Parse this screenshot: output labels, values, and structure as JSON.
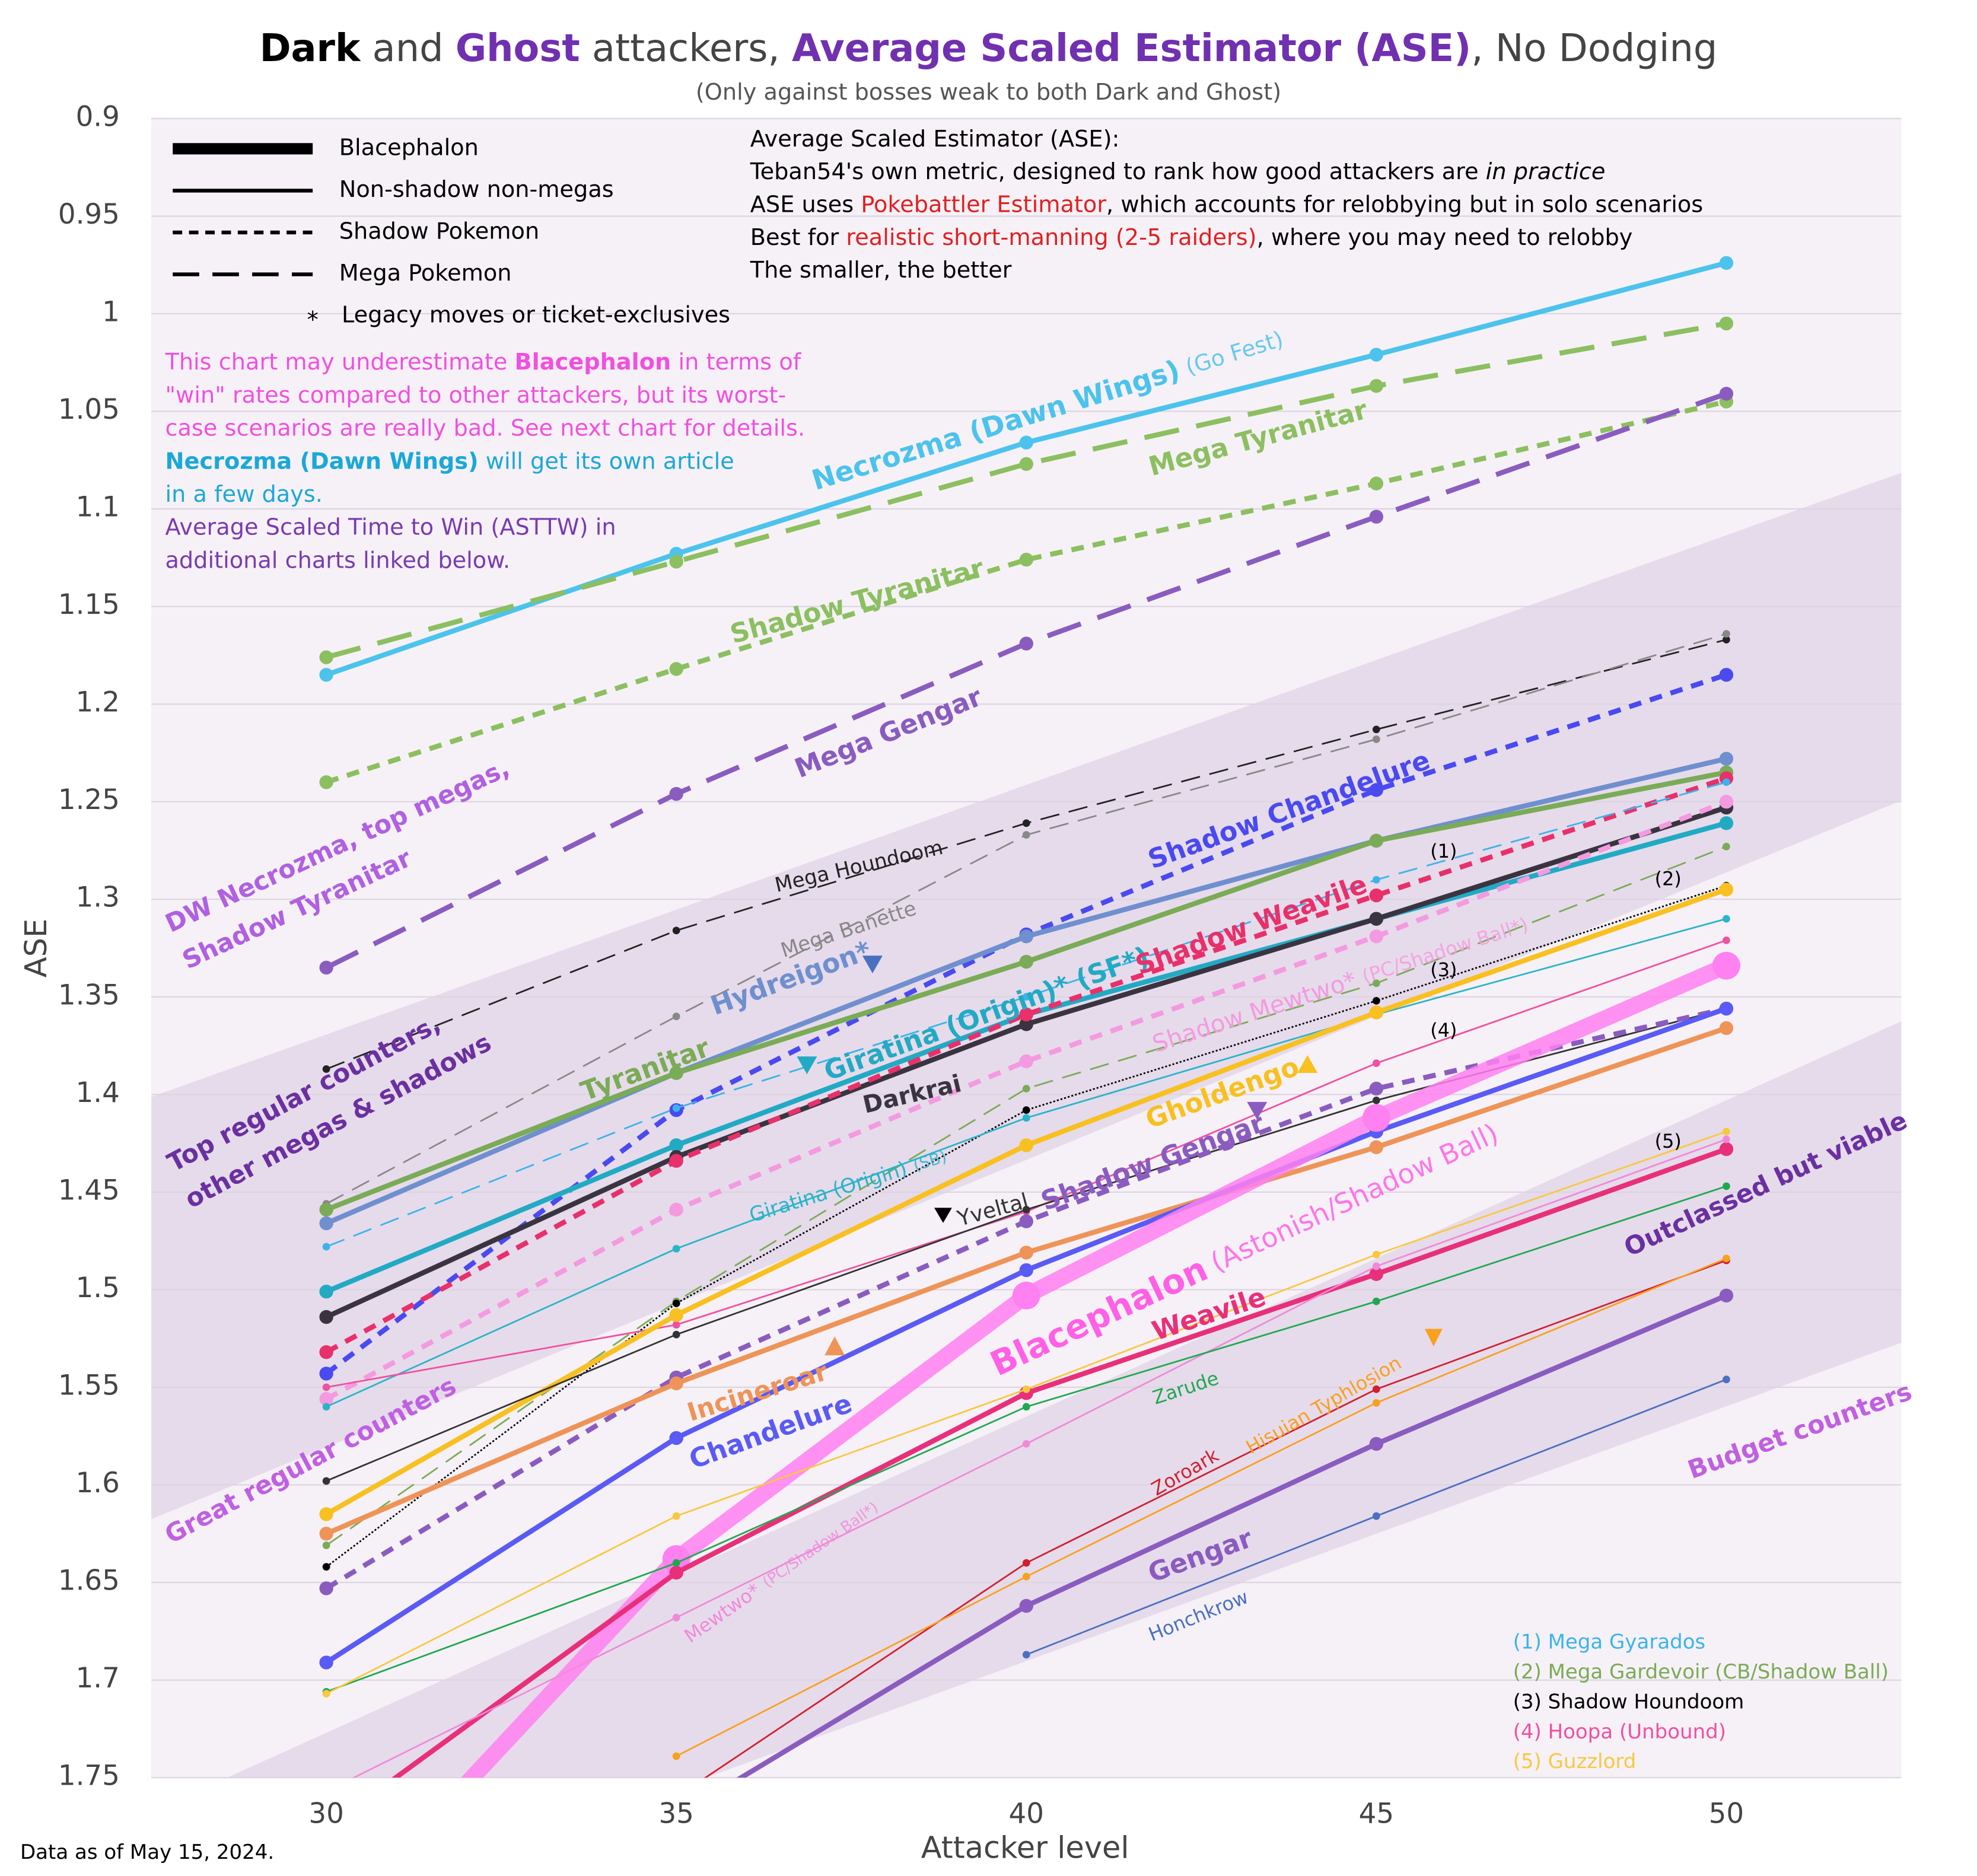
{
  "chart_data": {
    "type": "line",
    "title": [
      {
        "text": "Dark",
        "color": "#000000",
        "bold": true
      },
      {
        "text": " and ",
        "color": "#444444"
      },
      {
        "text": "Ghost",
        "color": "#7030b0",
        "bold": true
      },
      {
        "text": " attackers, ",
        "color": "#444444"
      },
      {
        "text": "Average Scaled Estimator (ASE)",
        "color": "#7030b0",
        "bold": true
      },
      {
        "text": ", No Dodging",
        "color": "#444444"
      }
    ],
    "subtitle": "(Only against bosses weak to both Dark and Ghost)",
    "x_label": "Attacker level",
    "y_label": "ASE",
    "x": [
      30,
      35,
      40,
      45,
      50
    ],
    "xlim": [
      27.5,
      52.5
    ],
    "xticks": [
      30,
      35,
      40,
      45,
      50
    ],
    "ylim": [
      0.9,
      1.75
    ],
    "y_inverted": true,
    "yticks": [
      0.9,
      0.95,
      1,
      1.05,
      1.1,
      1.15,
      1.2,
      1.25,
      1.3,
      1.35,
      1.4,
      1.45,
      1.5,
      1.55,
      1.6,
      1.65,
      1.7,
      1.75
    ],
    "grid": true,
    "legend_styles": [
      {
        "label": "Blacephalon",
        "line": "thick"
      },
      {
        "label": "Non-shadow non-megas",
        "line": "solid"
      },
      {
        "label": "Shadow Pokemon",
        "line": "short-dash"
      },
      {
        "label": "Mega Pokemon",
        "line": "long-dash"
      },
      {
        "label": "Legacy moves or ticket-exclusives",
        "symbol": "*"
      }
    ],
    "notes": [
      [
        {
          "text": "Average Scaled Estimator (ASE):"
        }
      ],
      [
        {
          "text": "Teban54's own metric, designed to rank how good attackers are "
        },
        {
          "text": "in practice",
          "italic": true
        }
      ],
      [
        {
          "text": "ASE uses "
        },
        {
          "text": "Pokebattler Estimator",
          "color": "#e02020"
        },
        {
          "text": ", which accounts for relobbying but in solo scenarios"
        }
      ],
      [
        {
          "text": "Best for "
        },
        {
          "text": "realistic short-manning (2-5 raiders)",
          "color": "#e02020"
        },
        {
          "text": ", where you may need to relobby"
        }
      ],
      [
        {
          "text": "The smaller, the better"
        }
      ]
    ],
    "caveats": [
      [
        {
          "text": "This chart may underestimate ",
          "color": "#f050e0"
        },
        {
          "text": "Blacephalon",
          "color": "#f050e0",
          "bold": true
        },
        {
          "text": " in terms of",
          "color": "#f050e0"
        }
      ],
      [
        {
          "text": "\"win\" rates compared to other attackers, but its worst-",
          "color": "#f050e0"
        }
      ],
      [
        {
          "text": "case scenarios are really bad. See next chart for details.",
          "color": "#f050e0"
        }
      ],
      [
        {
          "text": "Necrozma (Dawn Wings)",
          "color": "#1aa8d8",
          "bold": true
        },
        {
          "text": " will get its own article",
          "color": "#1aa8d8"
        }
      ],
      [
        {
          "text": "in a few days.",
          "color": "#1aa8d8"
        }
      ],
      [
        {
          "text": "Average Scaled Time to Win (ASTTW) in",
          "color": "#7a3ab0"
        }
      ],
      [
        {
          "text": "additional charts linked below.",
          "color": "#7a3ab0"
        }
      ]
    ],
    "annotations": [
      {
        "lines": [
          "DW Necrozma, top megas,",
          "Shadow Tyranitar"
        ],
        "color": "#b060e0"
      },
      {
        "lines": [
          "Top regular counters,",
          "other megas & shadows"
        ],
        "color": "#6a30a0"
      },
      {
        "lines": [
          "Great regular counters"
        ],
        "color": "#c060e0"
      },
      {
        "lines": [
          "Outclassed but viable"
        ],
        "color": "#6a30a0"
      },
      {
        "lines": [
          "Budget counters"
        ],
        "color": "#c060e0"
      }
    ],
    "footer": "Data as of May 15, 2024.",
    "series": [
      {
        "name": "Necrozma (Dawn Wings)",
        "tag": "(Go Fest)",
        "color": "#4cc3ec",
        "line": "solid",
        "weight": "bold",
        "values": [
          1.185,
          1.123,
          1.066,
          1.021,
          0.974
        ]
      },
      {
        "name": "Mega Tyranitar",
        "color": "#8cbf60",
        "line": "long-dash",
        "weight": "bold",
        "values": [
          1.176,
          1.127,
          1.077,
          1.037,
          1.005
        ]
      },
      {
        "name": "Shadow Tyranitar",
        "color": "#8cbf60",
        "line": "short-dash",
        "weight": "bold",
        "values": [
          1.24,
          1.182,
          1.126,
          1.087,
          1.045
        ]
      },
      {
        "name": "Mega Gengar",
        "color": "#8a5cbf",
        "line": "long-dash",
        "weight": "bold",
        "values": [
          1.335,
          1.246,
          1.169,
          1.104,
          1.041
        ]
      },
      {
        "name": "Mega Houndoom",
        "color": "#222222",
        "line": "long-dash",
        "weight": "thin",
        "values": [
          1.387,
          1.316,
          1.261,
          1.213,
          1.167
        ]
      },
      {
        "name": "Mega Banette",
        "color": "#888888",
        "line": "long-dash",
        "weight": "thin",
        "values": [
          1.456,
          1.36,
          1.267,
          1.218,
          1.164
        ]
      },
      {
        "name": "Shadow Chandelure",
        "color": "#4a4af0",
        "line": "short-dash",
        "weight": "bold",
        "values": [
          1.543,
          1.408,
          1.318,
          1.244,
          1.185
        ]
      },
      {
        "name": "Hydreigon*",
        "color": "#6f8fcf",
        "line": "solid",
        "weight": "bold",
        "values": [
          1.466,
          1.389,
          1.319,
          1.27,
          1.228
        ]
      },
      {
        "name": "Tyranitar",
        "color": "#7aab56",
        "line": "solid",
        "weight": "bold",
        "values": [
          1.459,
          1.389,
          1.332,
          1.27,
          1.235
        ]
      },
      {
        "name": "Giratina (Origin)* (SF*)",
        "color": "#22aac4",
        "line": "solid",
        "weight": "bold",
        "values": [
          1.501,
          1.426,
          1.359,
          1.31,
          1.261
        ]
      },
      {
        "name": "Darkrai",
        "color": "#3a3440",
        "line": "solid",
        "weight": "bold",
        "values": [
          1.514,
          1.432,
          1.364,
          1.31,
          1.253
        ]
      },
      {
        "name": "Shadow Weavile",
        "color": "#e8306a",
        "line": "short-dash",
        "weight": "bold",
        "values": [
          1.532,
          1.434,
          1.359,
          1.298,
          1.238
        ]
      },
      {
        "name": "Shadow Mewtwo*",
        "tag": "(PC/Shadow Ball*)",
        "color": "#f49ae0",
        "line": "short-dash",
        "weight": "bold",
        "values": [
          1.556,
          1.459,
          1.383,
          1.319,
          1.25
        ]
      },
      {
        "name": "Mega Gyarados",
        "marker": "(1)",
        "color": "#3ab4ea",
        "line": "long-dash",
        "weight": "thin",
        "values": [
          1.478,
          1.407,
          1.35,
          1.29,
          1.24
        ]
      },
      {
        "name": "Mega Gardevoir",
        "tag": "(CB/Shadow Ball)",
        "marker": "(2)",
        "color": "#7aab56",
        "line": "long-dash",
        "weight": "thin",
        "values": [
          1.631,
          1.506,
          1.397,
          1.343,
          1.273
        ]
      },
      {
        "name": "Shadow Houndoom",
        "marker": "(3)",
        "color": "#000000",
        "line": "dot",
        "weight": "thin",
        "values": [
          1.642,
          1.507,
          1.408,
          1.352,
          1.293
        ]
      },
      {
        "name": "Giratina (Origin)",
        "tag": "(SB)",
        "color": "#2ab4c8",
        "line": "solid",
        "weight": "thin",
        "values": [
          1.56,
          1.479,
          1.412,
          1.359,
          1.31
        ]
      },
      {
        "name": "Hoopa (Unbound)",
        "marker": "(4)",
        "color": "#f050a0",
        "line": "solid",
        "weight": "thin",
        "values": [
          1.55,
          1.518,
          1.46,
          1.384,
          1.321
        ]
      },
      {
        "name": "Gholdengo",
        "color": "#f8c020",
        "line": "solid",
        "weight": "bold",
        "values": [
          1.615,
          1.513,
          1.426,
          1.358,
          1.295
        ]
      },
      {
        "name": "Yveltal",
        "color": "#333333",
        "line": "solid",
        "weight": "thin",
        "values": [
          1.598,
          1.523,
          1.459,
          1.403,
          1.356
        ]
      },
      {
        "name": "Shadow Gengar",
        "color": "#8a5cbf",
        "line": "short-dash",
        "weight": "bold",
        "values": [
          1.653,
          1.545,
          1.465,
          1.397,
          1.356
        ]
      },
      {
        "name": "Incineroar",
        "color": "#ee9458",
        "line": "solid",
        "weight": "bold",
        "values": [
          1.625,
          1.548,
          1.481,
          1.427,
          1.366
        ]
      },
      {
        "name": "Chandelure",
        "color": "#5a5af5",
        "line": "solid",
        "weight": "bold",
        "values": [
          1.691,
          1.576,
          1.49,
          1.419,
          1.356
        ]
      },
      {
        "name": "Blacephalon",
        "tag": "(Astonish/Shadow Ball)",
        "color": "#ff80f0",
        "line": "thick",
        "weight": "thick",
        "values": [
          1.83,
          1.638,
          1.503,
          1.412,
          1.334
        ]
      },
      {
        "name": "Weavile",
        "color": "#e8307a",
        "line": "solid",
        "weight": "bold",
        "values": [
          1.776,
          1.645,
          1.553,
          1.492,
          1.428
        ]
      },
      {
        "name": "Mewtwo*",
        "tag": "(PC/Shadow Ball*)",
        "color": "#f08ad8",
        "line": "solid",
        "weight": "thin",
        "values": [
          1.757,
          1.668,
          1.579,
          1.488,
          1.423
        ]
      },
      {
        "name": "Zarude",
        "color": "#20a850",
        "line": "solid",
        "weight": "thin",
        "values": [
          1.706,
          1.64,
          1.56,
          1.506,
          1.447
        ]
      },
      {
        "name": "Guzzlord",
        "marker": "(5)",
        "color": "#f8c840",
        "line": "solid",
        "weight": "thin",
        "values": [
          1.707,
          1.616,
          1.551,
          1.482,
          1.419
        ]
      },
      {
        "name": "Zoroark",
        "color": "#d02030",
        "line": "solid",
        "weight": "thin",
        "values": [
          null,
          1.76,
          1.64,
          1.551,
          1.485
        ]
      },
      {
        "name": "Hisuian Typhlosion",
        "color": "#f8a020",
        "line": "solid",
        "weight": "thin",
        "values": [
          null,
          1.739,
          1.647,
          1.558,
          1.484
        ]
      },
      {
        "name": "Gengar",
        "color": "#8a5cbf",
        "line": "solid",
        "weight": "bold",
        "values": [
          null,
          1.77,
          1.662,
          1.579,
          1.503
        ]
      },
      {
        "name": "Honchkrow",
        "color": "#4a70c0",
        "line": "solid",
        "weight": "thin",
        "values": [
          null,
          null,
          1.687,
          1.616,
          1.546
        ]
      }
    ]
  }
}
